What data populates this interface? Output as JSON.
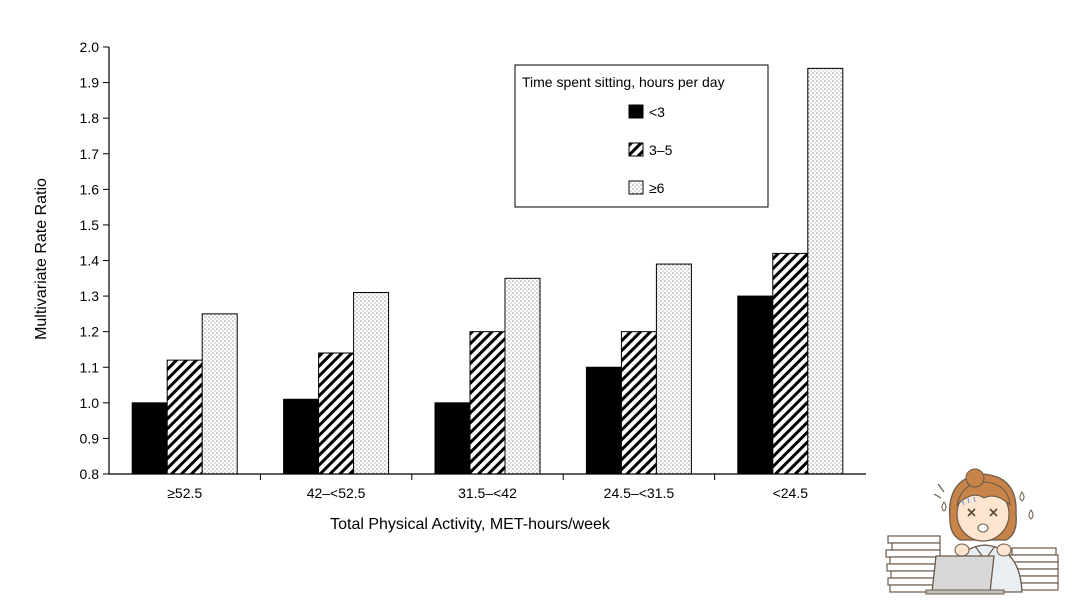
{
  "chart_data": {
    "type": "bar",
    "title": "",
    "xlabel": "Total Physical Activity, MET-hours/week",
    "ylabel": "Multivariate Rate Ratio",
    "ylim": [
      0.8,
      2.0
    ],
    "ytick_step": 0.1,
    "yticks": [
      "0.8",
      "0.9",
      "1.0",
      "1.1",
      "1.2",
      "1.3",
      "1.4",
      "1.5",
      "1.6",
      "1.7",
      "1.8",
      "1.9",
      "2.0"
    ],
    "categories": [
      "≥52.5",
      "42–<52.5",
      "31.5–<42",
      "24.5–<31.5",
      "<24.5"
    ],
    "legend_title": "Time spent sitting, hours per day",
    "legend_position": "top-right",
    "grid": false,
    "series": [
      {
        "name": "<3",
        "pattern": "solid",
        "color": "#000000",
        "values": [
          1.0,
          1.01,
          1.0,
          1.1,
          1.3
        ]
      },
      {
        "name": "3–5",
        "pattern": "diagonal-hatch",
        "color": "#000000",
        "values": [
          1.12,
          1.14,
          1.2,
          1.2,
          1.42
        ]
      },
      {
        "name": "≥6",
        "pattern": "dotted",
        "color": "#000000",
        "values": [
          1.25,
          1.31,
          1.35,
          1.39,
          1.94
        ]
      }
    ]
  },
  "decoration": {
    "illustration": "stressed-office-worker-with-paper-stacks"
  }
}
